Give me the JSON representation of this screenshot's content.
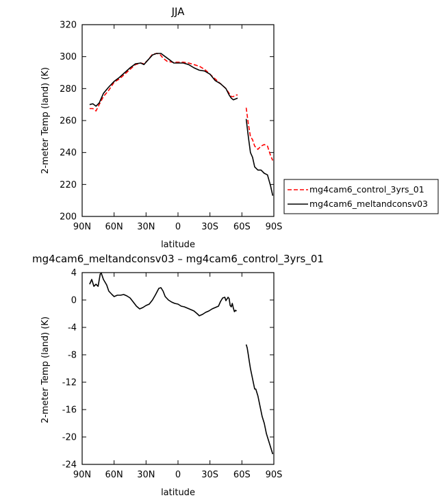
{
  "chart_data": [
    {
      "type": "line",
      "title": "JJA",
      "xlabel": "latitude",
      "ylabel": "2-meter Temp (land) (K)",
      "xlim": [
        90,
        -90
      ],
      "ylim": [
        200,
        320
      ],
      "xticks": [
        90,
        60,
        30,
        0,
        -30,
        -60,
        -90
      ],
      "xtick_labels": [
        "90N",
        "60N",
        "30N",
        "0",
        "30S",
        "60S",
        "90S"
      ],
      "yticks": [
        200,
        220,
        240,
        260,
        280,
        300,
        320
      ],
      "ytick_labels": [
        "200",
        "220",
        "240",
        "260",
        "280",
        "300",
        "320"
      ],
      "legend_position": "right",
      "series": [
        {
          "name": "mg4cam6_control_3yrs_01",
          "color": "#ff0000",
          "dash": "dashed",
          "segments": [
            [
              [
                83,
                267.5
              ],
              [
                80,
                267.5
              ],
              [
                77,
                266
              ],
              [
                74,
                270
              ],
              [
                70,
                275
              ],
              [
                65,
                279
              ],
              [
                60,
                284
              ],
              [
                55,
                286
              ],
              [
                50,
                289
              ],
              [
                45,
                292
              ],
              [
                40,
                295
              ],
              [
                35,
                296
              ],
              [
                32,
                295.5
              ],
              [
                28,
                298
              ],
              [
                24,
                301.5
              ],
              [
                20,
                302
              ],
              [
                17,
                301.5
              ],
              [
                14,
                299
              ],
              [
                10,
                297
              ],
              [
                5,
                296.5
              ],
              [
                0,
                296.5
              ],
              [
                -5,
                296.5
              ],
              [
                -10,
                296
              ],
              [
                -15,
                295
              ],
              [
                -20,
                294
              ],
              [
                -25,
                292
              ],
              [
                -30,
                289
              ],
              [
                -35,
                286
              ],
              [
                -40,
                283
              ],
              [
                -45,
                280
              ],
              [
                -48,
                277
              ],
              [
                -50,
                275
              ],
              [
                -52,
                275
              ],
              [
                -54,
                276
              ],
              [
                -56,
                276
              ]
            ],
            [
              [
                -64,
                268
              ],
              [
                -66,
                258
              ],
              [
                -68,
                250
              ],
              [
                -70,
                248
              ],
              [
                -72,
                244
              ],
              [
                -75,
                242
              ],
              [
                -78,
                244
              ],
              [
                -81,
                245
              ],
              [
                -84,
                244
              ],
              [
                -87,
                238
              ],
              [
                -89,
                235
              ]
            ]
          ]
        },
        {
          "name": "mg4cam6_meltandconsv03",
          "color": "#000000",
          "dash": "solid",
          "segments": [
            [
              [
                83,
                270
              ],
              [
                80,
                270.5
              ],
              [
                77,
                269
              ],
              [
                74,
                271
              ],
              [
                70,
                277
              ],
              [
                65,
                281
              ],
              [
                60,
                284.5
              ],
              [
                55,
                287
              ],
              [
                50,
                290
              ],
              [
                45,
                293
              ],
              [
                40,
                295.5
              ],
              [
                35,
                296
              ],
              [
                32,
                295
              ],
              [
                28,
                298
              ],
              [
                24,
                301
              ],
              [
                20,
                302
              ],
              [
                16,
                302
              ],
              [
                12,
                300
              ],
              [
                8,
                298
              ],
              [
                4,
                296
              ],
              [
                0,
                296
              ],
              [
                -5,
                296
              ],
              [
                -10,
                295
              ],
              [
                -15,
                293
              ],
              [
                -20,
                291.5
              ],
              [
                -25,
                291
              ],
              [
                -30,
                289
              ],
              [
                -35,
                285
              ],
              [
                -40,
                283
              ],
              [
                -45,
                280
              ],
              [
                -48,
                276
              ],
              [
                -50,
                274
              ],
              [
                -52,
                273
              ],
              [
                -54,
                273.5
              ],
              [
                -56,
                274
              ]
            ],
            [
              [
                -64,
                261
              ],
              [
                -66,
                250
              ],
              [
                -68,
                240
              ],
              [
                -70,
                237
              ],
              [
                -72,
                231
              ],
              [
                -75,
                229
              ],
              [
                -78,
                229
              ],
              [
                -81,
                227
              ],
              [
                -84,
                226
              ],
              [
                -87,
                219
              ],
              [
                -89,
                213
              ]
            ]
          ]
        }
      ]
    },
    {
      "type": "line",
      "title": "mg4cam6_meltandconsv03 – mg4cam6_control_3yrs_01",
      "xlabel": "latitude",
      "ylabel": "2-meter Temp (land) (K)",
      "xlim": [
        90,
        -90
      ],
      "ylim": [
        -24,
        4
      ],
      "xticks": [
        90,
        60,
        30,
        0,
        -30,
        -60,
        -90
      ],
      "xtick_labels": [
        "90N",
        "60N",
        "30N",
        "0",
        "30S",
        "60S",
        "90S"
      ],
      "yticks": [
        -24,
        -20,
        -16,
        -12,
        -8,
        -4,
        0,
        4
      ],
      "ytick_labels": [
        "-24",
        "-20",
        "-16",
        "-12",
        "-8",
        "-4",
        "0",
        "4"
      ],
      "series": [
        {
          "color": "#000000",
          "dash": "solid",
          "segments": [
            [
              [
                83,
                2.3
              ],
              [
                81,
                3
              ],
              [
                79,
                2
              ],
              [
                77,
                2.3
              ],
              [
                75,
                2
              ],
              [
                73,
                3.8
              ],
              [
                72,
                3.9
              ],
              [
                70,
                3
              ],
              [
                67,
                2.2
              ],
              [
                65,
                1.3
              ],
              [
                62,
                0.8
              ],
              [
                60,
                0.5
              ],
              [
                57,
                0.7
              ],
              [
                54,
                0.7
              ],
              [
                51,
                0.8
              ],
              [
                48,
                0.6
              ],
              [
                45,
                0.3
              ],
              [
                42,
                -0.3
              ],
              [
                39,
                -0.9
              ],
              [
                36,
                -1.3
              ],
              [
                33,
                -1.1
              ],
              [
                30,
                -0.8
              ],
              [
                27,
                -0.6
              ],
              [
                24,
                0
              ],
              [
                21,
                0.8
              ],
              [
                18,
                1.7
              ],
              [
                16,
                1.8
              ],
              [
                14,
                1.3
              ],
              [
                12,
                0.5
              ],
              [
                9,
                0
              ],
              [
                6,
                -0.3
              ],
              [
                3,
                -0.5
              ],
              [
                0,
                -0.6
              ],
              [
                -3,
                -0.9
              ],
              [
                -6,
                -1
              ],
              [
                -9,
                -1.2
              ],
              [
                -12,
                -1.4
              ],
              [
                -15,
                -1.6
              ],
              [
                -18,
                -2
              ],
              [
                -20,
                -2.3
              ],
              [
                -23,
                -2.1
              ],
              [
                -26,
                -1.8
              ],
              [
                -29,
                -1.6
              ],
              [
                -32,
                -1.3
              ],
              [
                -35,
                -1.1
              ],
              [
                -38,
                -0.9
              ],
              [
                -40,
                -0.2
              ],
              [
                -42,
                0.3
              ],
              [
                -44,
                0.4
              ],
              [
                -45,
                -0.1
              ],
              [
                -47,
                0.4
              ],
              [
                -48,
                0.2
              ],
              [
                -49,
                -0.8
              ],
              [
                -50,
                -1
              ],
              [
                -51,
                -0.5
              ],
              [
                -52,
                -1.2
              ],
              [
                -53,
                -1.7
              ],
              [
                -54,
                -1.5
              ],
              [
                -55,
                -1.6
              ]
            ],
            [
              [
                -64,
                -6.5
              ],
              [
                -65,
                -7
              ],
              [
                -66,
                -8
              ],
              [
                -67,
                -9
              ],
              [
                -68,
                -10
              ],
              [
                -70,
                -11.5
              ],
              [
                -72,
                -13
              ],
              [
                -73,
                -13
              ],
              [
                -75,
                -14
              ],
              [
                -77,
                -15.5
              ],
              [
                -79,
                -17
              ],
              [
                -81,
                -18
              ],
              [
                -83,
                -19.5
              ],
              [
                -85,
                -20.5
              ],
              [
                -87,
                -21.5
              ],
              [
                -89,
                -22.5
              ]
            ]
          ]
        }
      ]
    }
  ]
}
